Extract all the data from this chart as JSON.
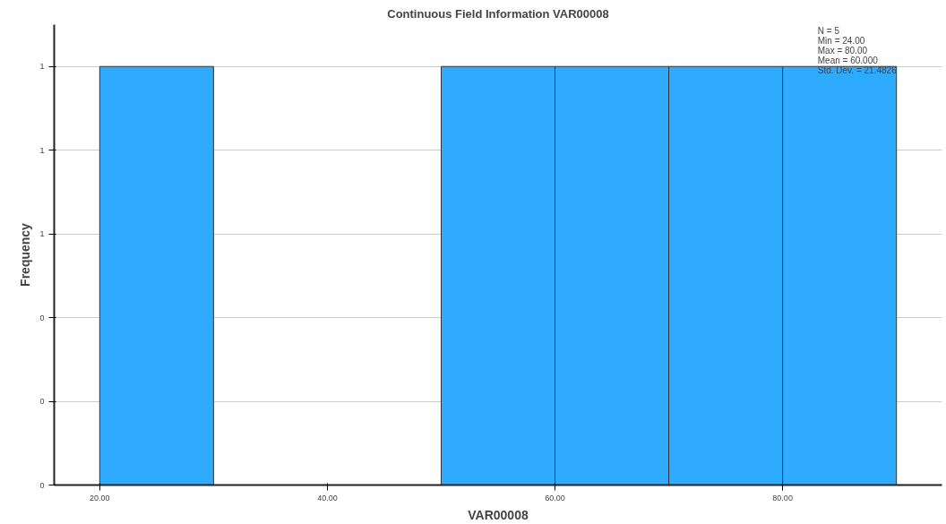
{
  "chart_data": {
    "type": "histogram",
    "title": "Continuous Field Information VAR00008",
    "xlabel": "VAR00008",
    "ylabel": "Frequency",
    "bins": [
      20,
      30,
      40,
      50,
      60,
      70,
      80,
      90
    ],
    "values": [
      1,
      0,
      0,
      1,
      1,
      1,
      1
    ],
    "color": "#2eaaff",
    "xlim": [
      16,
      94
    ],
    "xticks": [
      {
        "value": 20,
        "label": "20.00"
      },
      {
        "value": 40,
        "label": "40.00"
      },
      {
        "value": 60,
        "label": "60.00"
      },
      {
        "value": 80,
        "label": "80.00"
      }
    ],
    "ylim": [
      0,
      1.1
    ],
    "yticks": [
      {
        "value": 0,
        "label": "0"
      },
      {
        "value": 0.2,
        "label": "0"
      },
      {
        "value": 0.4,
        "label": "0"
      },
      {
        "value": 0.6,
        "label": "1"
      },
      {
        "value": 0.8,
        "label": "1"
      },
      {
        "value": 1.0,
        "label": "1"
      }
    ],
    "grid": "y",
    "annotations": [
      "N = 5",
      "Min = 24.00",
      "Max = 80.00",
      "Mean = 60.000",
      "Std. Dev. = 21.4826"
    ]
  }
}
